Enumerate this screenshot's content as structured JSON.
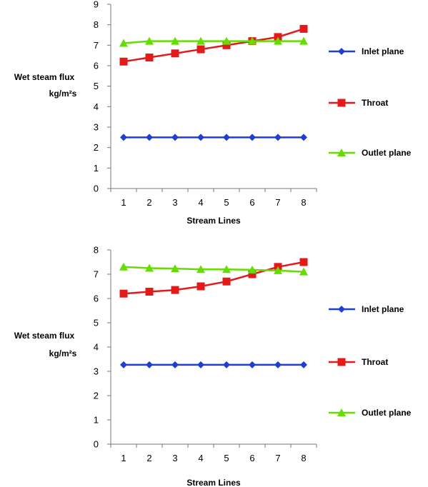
{
  "chart_data": [
    {
      "type": "line",
      "title": "",
      "xlabel": "Stream Lines",
      "ylabel": "Wet steam flux",
      "ylabel_unit": "kg/m²s",
      "categories": [
        "1",
        "2",
        "3",
        "4",
        "5",
        "6",
        "7",
        "8"
      ],
      "ylim": [
        0,
        9
      ],
      "yticks": [
        "0",
        "1",
        "2",
        "3",
        "4",
        "5",
        "6",
        "7",
        "8",
        "9"
      ],
      "grid": false,
      "legend": "right",
      "series": [
        {
          "name": "Inlet plane",
          "color": "#1f3fd1",
          "marker": "diamond",
          "values": [
            2.5,
            2.5,
            2.5,
            2.5,
            2.5,
            2.5,
            2.5,
            2.5
          ]
        },
        {
          "name": "Throat",
          "color": "#e41a1a",
          "marker": "square",
          "values": [
            6.2,
            6.4,
            6.6,
            6.8,
            7.0,
            7.2,
            7.4,
            7.8
          ]
        },
        {
          "name": "Outlet plane",
          "color": "#66dd00",
          "marker": "triangle",
          "values": [
            7.1,
            7.2,
            7.2,
            7.2,
            7.2,
            7.2,
            7.2,
            7.2
          ]
        }
      ]
    },
    {
      "type": "line",
      "title": "",
      "xlabel": "Stream Lines",
      "ylabel": "Wet steam flux",
      "ylabel_unit": "kg/m²s",
      "categories": [
        "1",
        "2",
        "3",
        "4",
        "5",
        "6",
        "7",
        "8"
      ],
      "ylim": [
        0,
        8
      ],
      "yticks": [
        "0",
        "1",
        "2",
        "3",
        "4",
        "5",
        "6",
        "7",
        "8"
      ],
      "grid": false,
      "legend": "right",
      "series": [
        {
          "name": "Inlet plane",
          "color": "#1f3fd1",
          "marker": "diamond",
          "values": [
            3.27,
            3.27,
            3.27,
            3.27,
            3.27,
            3.27,
            3.27,
            3.27
          ]
        },
        {
          "name": "Throat",
          "color": "#e41a1a",
          "marker": "square",
          "values": [
            6.2,
            6.28,
            6.35,
            6.5,
            6.7,
            7.0,
            7.3,
            7.5
          ]
        },
        {
          "name": "Outlet plane",
          "color": "#66dd00",
          "marker": "triangle",
          "values": [
            7.3,
            7.25,
            7.23,
            7.2,
            7.2,
            7.18,
            7.15,
            7.1
          ]
        }
      ]
    }
  ]
}
